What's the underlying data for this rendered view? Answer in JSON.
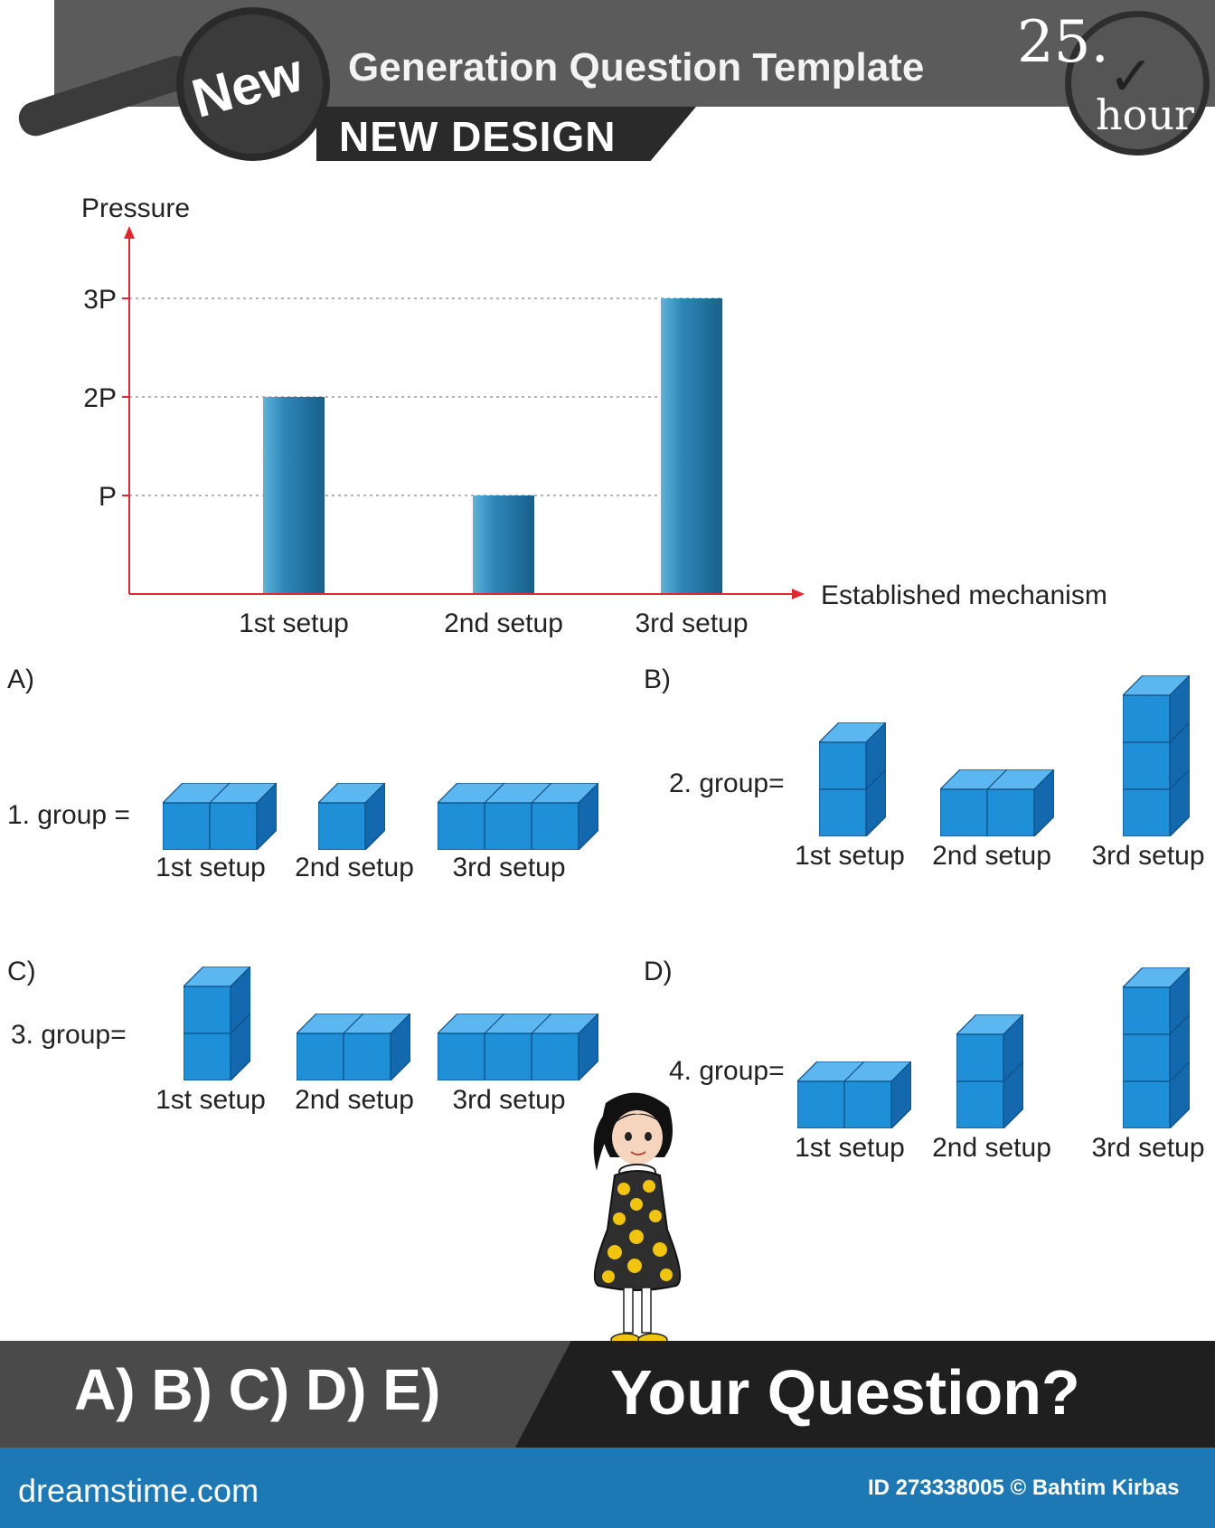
{
  "header": {
    "badge": "New",
    "title": "Generation Question Template",
    "subtitle": "NEW DESIGN",
    "clock_number": "25.",
    "clock_unit": "hour"
  },
  "colors": {
    "bar": "#2d86b7",
    "axis": "#e0282e",
    "cube": "#1f8fd8",
    "header": "#5b5b5b",
    "footer_bar": "#1d78b3"
  },
  "chart_data": {
    "type": "bar",
    "ylabel": "Pressure",
    "xlabel": "Established mechanism",
    "categories": [
      "1st setup",
      "2nd setup",
      "3rd setup"
    ],
    "values": [
      2,
      1,
      3
    ],
    "yticks": [
      {
        "value": 1,
        "label": "P"
      },
      {
        "value": 2,
        "label": "2P"
      },
      {
        "value": 3,
        "label": "3P"
      }
    ],
    "ylim": [
      0,
      3
    ]
  },
  "options": [
    {
      "letter": "A)",
      "group_label": "1. group =",
      "setups": [
        {
          "label": "1st setup",
          "cols": 2,
          "rows": 1
        },
        {
          "label": "2nd setup",
          "cols": 1,
          "rows": 1
        },
        {
          "label": "3rd setup",
          "cols": 3,
          "rows": 1
        }
      ]
    },
    {
      "letter": "B)",
      "group_label": "2. group=",
      "setups": [
        {
          "label": "1st setup",
          "cols": 1,
          "rows": 2
        },
        {
          "label": "2nd setup",
          "cols": 2,
          "rows": 1
        },
        {
          "label": "3rd setup",
          "cols": 1,
          "rows": 3
        }
      ]
    },
    {
      "letter": "C)",
      "group_label": "3. group=",
      "setups": [
        {
          "label": "1st setup",
          "cols": 1,
          "rows": 2
        },
        {
          "label": "2nd setup",
          "cols": 2,
          "rows": 1
        },
        {
          "label": "3rd setup",
          "cols": 3,
          "rows": 1
        }
      ]
    },
    {
      "letter": "D)",
      "group_label": "4. group=",
      "setups": [
        {
          "label": "1st setup",
          "cols": 2,
          "rows": 1
        },
        {
          "label": "2nd setup",
          "cols": 1,
          "rows": 2
        },
        {
          "label": "3rd setup",
          "cols": 1,
          "rows": 3
        }
      ]
    }
  ],
  "footer": {
    "answers": "A) B) C) D) E)",
    "question": "Your Question?"
  },
  "credit": {
    "site": "dreamstime.com",
    "id_text": "ID 273338005 © Bahtim Kirbas"
  }
}
